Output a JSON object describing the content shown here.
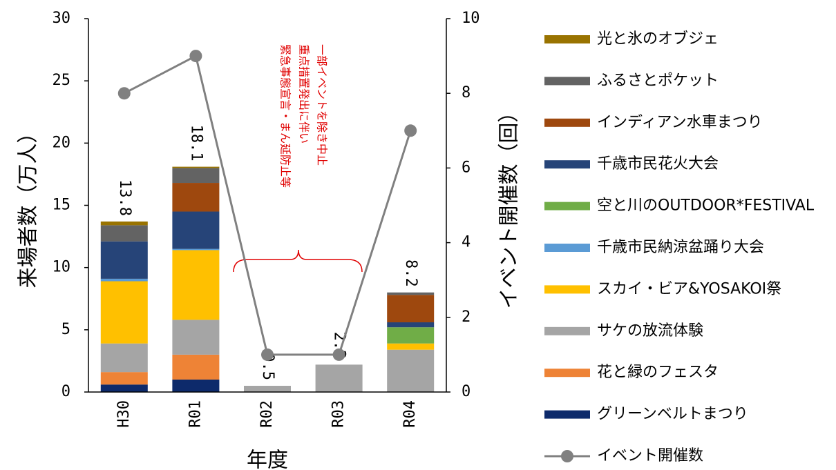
{
  "chart_data": {
    "type": "bar",
    "stacked": true,
    "xlabel": "年度",
    "ylabel": "来場者数（万人）",
    "y2label": "イベント開催数（回）",
    "ylim": [
      0,
      30
    ],
    "y2lim": [
      0,
      10
    ],
    "yticks": [
      "0",
      "5",
      "10",
      "15",
      "20",
      "25",
      "30"
    ],
    "y2ticks": [
      "0",
      "2",
      "4",
      "6",
      "8",
      "10"
    ],
    "categories": [
      "H30",
      "R01",
      "R02",
      "R03",
      "R04"
    ],
    "totals": [
      "13.8",
      "18.1",
      "0.5",
      "2.2",
      "8.2"
    ],
    "series": [
      {
        "name": "グリーンベルトまつり",
        "color": "#0d2a6b",
        "values": [
          0.6,
          1.0,
          0,
          0,
          0
        ]
      },
      {
        "name": "花と緑のフェスタ",
        "color": "#ee8336",
        "values": [
          1.0,
          2.0,
          0,
          0,
          0
        ]
      },
      {
        "name": "サケの放流体験",
        "color": "#a5a5a5",
        "values": [
          2.3,
          2.8,
          0.5,
          2.2,
          3.4
        ]
      },
      {
        "name": "スカイ・ビア&YOSAKOI祭",
        "color": "#ffc000",
        "values": [
          5.0,
          5.6,
          0,
          0,
          0.5
        ]
      },
      {
        "name": "千歳市民納涼盆踊り大会",
        "color": "#5b9bd5",
        "values": [
          0.2,
          0.1,
          0,
          0,
          0
        ]
      },
      {
        "name": "空と川のOUTDOOR*FESTIVAL",
        "color": "#70ad47",
        "values": [
          0,
          0,
          0,
          0,
          1.3
        ]
      },
      {
        "name": "千歳市民花火大会",
        "color": "#264478",
        "values": [
          3.0,
          3.0,
          0,
          0,
          0.4
        ]
      },
      {
        "name": "インディアン水車まつり",
        "color": "#9e480e",
        "values": [
          0,
          2.3,
          0,
          0,
          2.2
        ]
      },
      {
        "name": "ふるさとポケット",
        "color": "#636363",
        "values": [
          1.3,
          1.2,
          0,
          0,
          0.2
        ]
      },
      {
        "name": "光と氷のオブジェ",
        "color": "#997300",
        "values": [
          0.3,
          0.1,
          0,
          0,
          0
        ]
      }
    ],
    "line_series": {
      "name": "イベント開催数",
      "color": "#808080",
      "values": [
        8,
        9,
        1,
        1,
        7
      ]
    },
    "annotation": [
      "緊急事態宣言・まん延防止等",
      "重点措置発出に伴い",
      "一部イベントを除き中止"
    ],
    "annotation_color": "#e00000",
    "grid": false,
    "legend_position": "right"
  }
}
